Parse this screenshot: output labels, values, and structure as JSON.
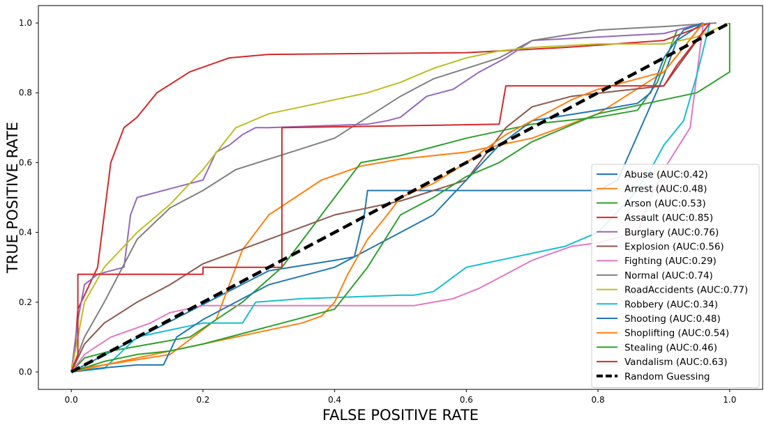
{
  "chart_data": {
    "type": "line",
    "title": "",
    "xlabel": "FALSE POSITIVE RATE",
    "ylabel": "TRUE POSITIVE RATE",
    "xlim": [
      -0.05,
      1.05
    ],
    "ylim": [
      -0.05,
      1.05
    ],
    "xticks": [
      0.0,
      0.2,
      0.4,
      0.6,
      0.8,
      1.0
    ],
    "xtick_labels": [
      "0.0",
      "0.2",
      "0.4",
      "0.6",
      "0.8",
      "1.0"
    ],
    "yticks": [
      0.0,
      0.2,
      0.4,
      0.6,
      0.8,
      1.0
    ],
    "ytick_labels": [
      "0.0",
      "0.2",
      "0.4",
      "0.6",
      "0.8",
      "1.0"
    ],
    "grid": false,
    "legend_position": "lower-right",
    "series": [
      {
        "name": "Abuse (AUC:0.42)",
        "color": "#1f77b4",
        "x": [
          0,
          0.3,
          0.4,
          0.43,
          0.445,
          0.45,
          0.8,
          0.83,
          0.9,
          0.92,
          0.96
        ],
        "y": [
          0,
          0.29,
          0.32,
          0.33,
          0.45,
          0.52,
          0.52,
          0.55,
          0.85,
          0.95,
          1.0
        ]
      },
      {
        "name": "Arrest (AUC:0.48)",
        "color": "#ff7f0e",
        "x": [
          0,
          0.01,
          0.05,
          0.15,
          0.22,
          0.26,
          0.3,
          0.38,
          0.44,
          0.5,
          0.6,
          0.7,
          0.8,
          0.9,
          0.96
        ],
        "y": [
          0,
          0.01,
          0.02,
          0.05,
          0.15,
          0.35,
          0.45,
          0.55,
          0.59,
          0.61,
          0.63,
          0.67,
          0.74,
          0.86,
          1.0
        ]
      },
      {
        "name": "Arson (AUC:0.53)",
        "color": "#2ca02c",
        "x": [
          0,
          0.02,
          0.06,
          0.12,
          0.18,
          0.26,
          0.32,
          0.36,
          0.4,
          0.44,
          0.5,
          0.56,
          0.6,
          0.7,
          0.8,
          0.86,
          0.89,
          0.92,
          0.96
        ],
        "y": [
          0,
          0.04,
          0.06,
          0.08,
          0.1,
          0.2,
          0.3,
          0.4,
          0.5,
          0.6,
          0.62,
          0.65,
          0.67,
          0.71,
          0.73,
          0.75,
          0.83,
          0.98,
          1.0
        ]
      },
      {
        "name": "Assault (AUC:0.85)",
        "color": "#d62728",
        "x": [
          0,
          0.005,
          0.01,
          0.04,
          0.06,
          0.08,
          0.1,
          0.13,
          0.18,
          0.24,
          0.3,
          0.6,
          0.75,
          0.9,
          0.97
        ],
        "y": [
          0,
          0.05,
          0.18,
          0.3,
          0.6,
          0.7,
          0.73,
          0.8,
          0.86,
          0.9,
          0.91,
          0.915,
          0.93,
          0.95,
          1.0
        ]
      },
      {
        "name": "Burglary (AUC:0.76)",
        "color": "#9467bd",
        "x": [
          0,
          0.01,
          0.02,
          0.04,
          0.08,
          0.09,
          0.1,
          0.2,
          0.22,
          0.24,
          0.26,
          0.28,
          0.3,
          0.45,
          0.48,
          0.5,
          0.54,
          0.58,
          0.62,
          0.66,
          0.7,
          0.8,
          0.9,
          0.96
        ],
        "y": [
          0,
          0.15,
          0.25,
          0.28,
          0.3,
          0.45,
          0.5,
          0.55,
          0.63,
          0.65,
          0.68,
          0.7,
          0.7,
          0.71,
          0.72,
          0.73,
          0.79,
          0.81,
          0.86,
          0.9,
          0.95,
          0.96,
          0.97,
          1.0
        ]
      },
      {
        "name": "Explosion (AUC:0.56)",
        "color": "#8c564b",
        "x": [
          0,
          0.02,
          0.05,
          0.1,
          0.15,
          0.2,
          0.3,
          0.4,
          0.5,
          0.6,
          0.66,
          0.7,
          0.76,
          0.9,
          0.97
        ],
        "y": [
          0,
          0.08,
          0.14,
          0.2,
          0.25,
          0.31,
          0.38,
          0.45,
          0.49,
          0.55,
          0.7,
          0.76,
          0.79,
          0.82,
          1.0
        ]
      },
      {
        "name": "Fighting (AUC:0.29)",
        "color": "#e377c2",
        "x": [
          0,
          0.02,
          0.06,
          0.12,
          0.15,
          0.2,
          0.52,
          0.58,
          0.62,
          0.66,
          0.7,
          0.76,
          0.8,
          0.86,
          0.88,
          0.9,
          0.94,
          0.96
        ],
        "y": [
          0,
          0.05,
          0.1,
          0.14,
          0.17,
          0.19,
          0.19,
          0.21,
          0.24,
          0.28,
          0.32,
          0.36,
          0.37,
          0.4,
          0.5,
          0.58,
          0.7,
          1.0
        ]
      },
      {
        "name": "Normal (AUC:0.74)",
        "color": "#7f7f7f",
        "x": [
          0,
          0.02,
          0.05,
          0.1,
          0.15,
          0.2,
          0.25,
          0.3,
          0.35,
          0.4,
          0.45,
          0.5,
          0.55,
          0.6,
          0.65,
          0.7,
          0.8,
          0.9,
          0.98
        ],
        "y": [
          0,
          0.1,
          0.2,
          0.38,
          0.47,
          0.52,
          0.58,
          0.61,
          0.64,
          0.67,
          0.73,
          0.79,
          0.84,
          0.87,
          0.9,
          0.95,
          0.98,
          0.99,
          1.0
        ]
      },
      {
        "name": "RoadAccidents (AUC:0.77)",
        "color": "#bcbd22",
        "x": [
          0,
          0.02,
          0.05,
          0.1,
          0.15,
          0.2,
          0.25,
          0.3,
          0.35,
          0.4,
          0.45,
          0.5,
          0.55,
          0.6,
          0.65,
          0.7,
          0.8,
          0.9,
          0.95,
          1.0
        ],
        "y": [
          0,
          0.2,
          0.3,
          0.4,
          0.48,
          0.58,
          0.7,
          0.74,
          0.76,
          0.78,
          0.8,
          0.83,
          0.87,
          0.9,
          0.92,
          0.93,
          0.94,
          0.94,
          0.96,
          1.0
        ]
      },
      {
        "name": "Robbery (AUC:0.34)",
        "color": "#17becf",
        "x": [
          0,
          0.05,
          0.1,
          0.2,
          0.26,
          0.28,
          0.35,
          0.5,
          0.52,
          0.55,
          0.6,
          0.65,
          0.7,
          0.75,
          0.8,
          0.85,
          0.88,
          0.9,
          0.93,
          0.95,
          0.97
        ],
        "y": [
          0,
          0.01,
          0.1,
          0.14,
          0.14,
          0.2,
          0.21,
          0.22,
          0.22,
          0.23,
          0.3,
          0.32,
          0.34,
          0.36,
          0.4,
          0.5,
          0.58,
          0.65,
          0.72,
          0.85,
          1.0
        ]
      },
      {
        "name": "Shooting (AUC:0.48)",
        "color": "#1f77b4",
        "x": [
          0,
          0.04,
          0.1,
          0.14,
          0.16,
          0.2,
          0.25,
          0.3,
          0.4,
          0.45,
          0.5,
          0.55,
          0.6,
          0.65,
          0.7,
          0.8,
          0.86,
          0.88,
          0.9,
          0.93,
          0.96
        ],
        "y": [
          0,
          0.01,
          0.02,
          0.02,
          0.1,
          0.15,
          0.2,
          0.25,
          0.3,
          0.35,
          0.4,
          0.45,
          0.55,
          0.65,
          0.72,
          0.75,
          0.77,
          0.8,
          0.9,
          0.98,
          1.0
        ]
      },
      {
        "name": "Shoplifting (AUC:0.54)",
        "color": "#ff7f0e",
        "x": [
          0,
          0.05,
          0.1,
          0.15,
          0.2,
          0.3,
          0.35,
          0.38,
          0.4,
          0.42,
          0.45,
          0.48,
          0.5,
          0.55,
          0.6,
          0.66,
          0.7,
          0.76,
          0.8,
          0.9,
          0.96
        ],
        "y": [
          0,
          0.02,
          0.04,
          0.06,
          0.08,
          0.12,
          0.14,
          0.16,
          0.2,
          0.28,
          0.38,
          0.45,
          0.5,
          0.54,
          0.6,
          0.68,
          0.72,
          0.78,
          0.81,
          0.86,
          1.0
        ]
      },
      {
        "name": "Stealing (AUC:0.46)",
        "color": "#2ca02c",
        "x": [
          0,
          0.05,
          0.1,
          0.15,
          0.2,
          0.3,
          0.4,
          0.45,
          0.5,
          0.55,
          0.6,
          0.65,
          0.7,
          0.75,
          0.8,
          0.85,
          0.9,
          0.95,
          1.0,
          1.0
        ],
        "y": [
          0,
          0.03,
          0.05,
          0.06,
          0.08,
          0.13,
          0.18,
          0.3,
          0.45,
          0.5,
          0.56,
          0.6,
          0.66,
          0.7,
          0.74,
          0.76,
          0.78,
          0.8,
          0.86,
          1.0
        ]
      },
      {
        "name": "Vandalism (AUC:0.63)",
        "color": "#d62728",
        "x": [
          0,
          0.01,
          0.01,
          0.2,
          0.2,
          0.31,
          0.32,
          0.32,
          0.65,
          0.66,
          0.9,
          0.92,
          0.97
        ],
        "y": [
          0,
          0.05,
          0.28,
          0.28,
          0.3,
          0.3,
          0.3,
          0.7,
          0.71,
          0.82,
          0.82,
          0.88,
          1.0
        ]
      },
      {
        "name": "Random Guessing",
        "color": "#000000",
        "dashed": true,
        "x": [
          0,
          1
        ],
        "y": [
          0,
          1
        ]
      }
    ]
  }
}
